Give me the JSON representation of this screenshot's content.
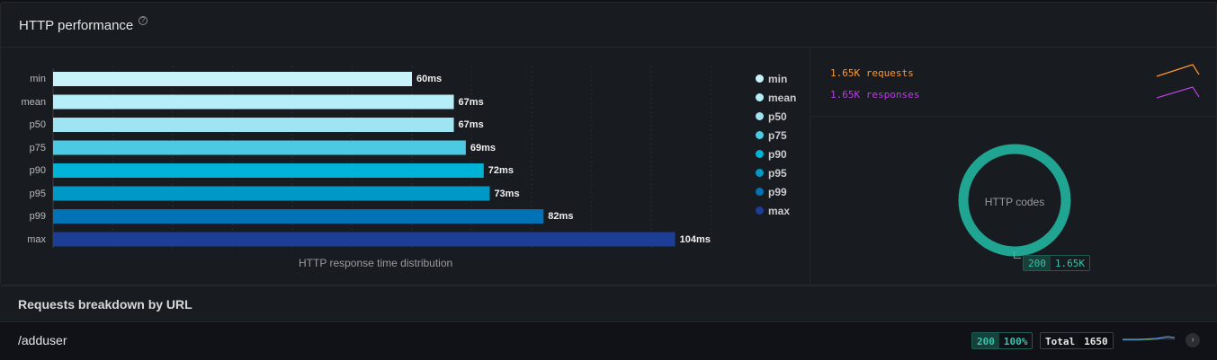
{
  "panel": {
    "title": "HTTP performance"
  },
  "chart_data": {
    "type": "bar",
    "orientation": "horizontal",
    "xlabel": "HTTP response time distribution",
    "xlim": [
      0,
      120
    ],
    "unit": "ms",
    "grid": true,
    "legend_position": "right",
    "categories": [
      "min",
      "mean",
      "p50",
      "p75",
      "p90",
      "p95",
      "p99",
      "max"
    ],
    "values": [
      60,
      67,
      67,
      69,
      72,
      73,
      82,
      104
    ],
    "value_labels": [
      "60ms",
      "67ms",
      "67ms",
      "69ms",
      "72ms",
      "73ms",
      "82ms",
      "104ms"
    ],
    "colors": [
      "#c8f3fb",
      "#b5eef8",
      "#9fe4f3",
      "#4dcae3",
      "#00b3d6",
      "#0099c7",
      "#0072b5",
      "#1d3e97"
    ]
  },
  "traffic": {
    "requests_text": "1.65K requests",
    "responses_text": "1.65K responses",
    "requests_color": "#ff9830",
    "responses_color": "#b440e0"
  },
  "http_codes": {
    "title": "HTTP codes",
    "ring_color": "#1fa592",
    "code": "200",
    "count": "1.65K"
  },
  "breakdown": {
    "title": "Requests breakdown by URL",
    "rows": [
      {
        "url": "/adduser",
        "status_code": "200",
        "status_pct": "100%",
        "total_label": "Total",
        "total_value": "1650"
      }
    ]
  }
}
